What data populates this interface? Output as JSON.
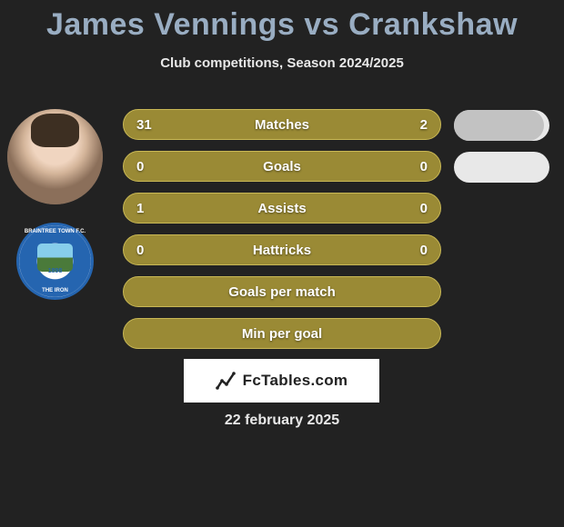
{
  "title": "James Vennings vs Crankshaw",
  "subtitle": "Club competitions, Season 2024/2025",
  "date": "22 february 2025",
  "footer_brand": "FcTables.com",
  "club_badge": {
    "top_text": "BRAINTREE TOWN F.C.",
    "bottom_text": "THE IRON",
    "year": "1898"
  },
  "colors": {
    "bar_bg": "#9a8a35",
    "bar_border": "#c9b855",
    "bar_fill": "#6f6425",
    "title_color": "#99adc2",
    "text_color": "#e8e8e8",
    "page_bg": "#222222",
    "portion_bg": "#e8e8e8",
    "portion_fill": "#c2c2c2"
  },
  "rows": [
    {
      "label": "Matches",
      "left": "31",
      "right": "2",
      "fill_left_pct": 0,
      "fill_right_pct": 0,
      "portion_pct": 94
    },
    {
      "label": "Goals",
      "left": "0",
      "right": "0",
      "fill_left_pct": 0,
      "fill_right_pct": 0,
      "portion_pct": 0
    },
    {
      "label": "Assists",
      "left": "1",
      "right": "0",
      "fill_left_pct": 0,
      "fill_right_pct": 0,
      "portion_pct": null
    },
    {
      "label": "Hattricks",
      "left": "0",
      "right": "0",
      "fill_left_pct": 0,
      "fill_right_pct": 0,
      "portion_pct": null
    },
    {
      "label": "Goals per match",
      "left": "",
      "right": "",
      "fill_left_pct": 0,
      "fill_right_pct": 0,
      "portion_pct": null
    },
    {
      "label": "Min per goal",
      "left": "",
      "right": "",
      "fill_left_pct": 0,
      "fill_right_pct": 0,
      "portion_pct": null
    }
  ]
}
